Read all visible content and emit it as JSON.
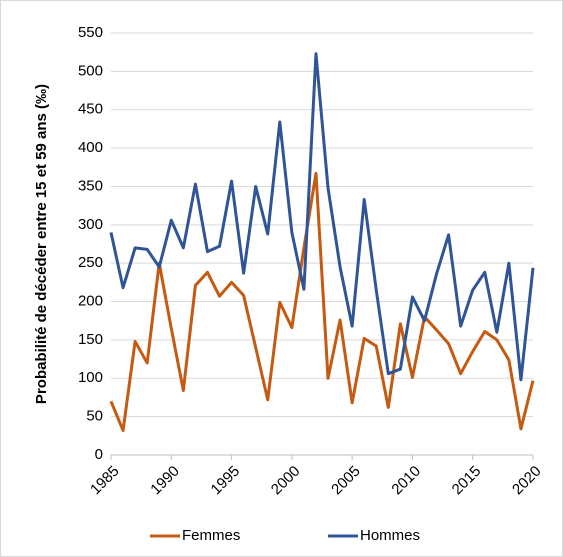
{
  "chart_data": {
    "type": "line",
    "y_label": "Probabilité de décéder entre 15 et 59 ans (‰)",
    "x": [
      1985,
      1986,
      1987,
      1988,
      1989,
      1990,
      1991,
      1992,
      1993,
      1994,
      1995,
      1996,
      1997,
      1998,
      1999,
      2000,
      2001,
      2002,
      2003,
      2004,
      2005,
      2006,
      2007,
      2008,
      2009,
      2010,
      2011,
      2012,
      2013,
      2014,
      2015,
      2016,
      2017,
      2018,
      2019,
      2020
    ],
    "series": [
      {
        "name": "Femmes",
        "color": "#c55a11",
        "values": [
          70,
          32,
          148,
          120,
          250,
          165,
          84,
          221,
          238,
          207,
          225,
          208,
          140,
          72,
          199,
          166,
          270,
          367,
          100,
          176,
          68,
          152,
          142,
          62,
          171,
          101,
          180,
          163,
          145,
          106,
          135,
          161,
          150,
          124,
          34,
          97
        ]
      },
      {
        "name": "Hommes",
        "color": "#2f5597",
        "values": [
          290,
          218,
          270,
          268,
          245,
          306,
          270,
          353,
          265,
          272,
          357,
          237,
          350,
          288,
          434,
          290,
          216,
          523,
          348,
          245,
          168,
          333,
          215,
          106,
          112,
          206,
          175,
          236,
          287,
          168,
          215,
          238,
          160,
          250,
          98,
          244
        ]
      }
    ],
    "xlim": [
      1985,
      2020
    ],
    "xticks": [
      1985,
      1990,
      1995,
      2000,
      2005,
      2010,
      2015,
      2020
    ],
    "ylim": [
      0,
      550
    ],
    "yticks": [
      0,
      50,
      100,
      150,
      200,
      250,
      300,
      350,
      400,
      450,
      500,
      550
    ],
    "grid": true,
    "legend": "bottom"
  }
}
